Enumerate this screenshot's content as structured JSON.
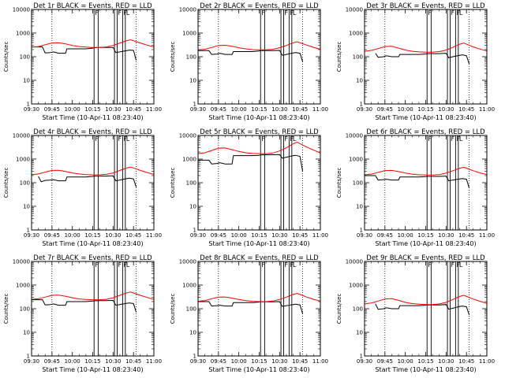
{
  "colors": {
    "events": "#000000",
    "lld": "#ff0000",
    "frame": "#000000"
  },
  "shared": {
    "xlabel": "Start Time (10-Apr-11 08:23:40)",
    "ylabel": "Counts/sec",
    "xlim": [
      "09:30",
      "11:00"
    ],
    "ylim": [
      1,
      10000
    ],
    "yscale": "log",
    "yticks": [
      "1",
      "10",
      "100",
      "1000",
      "10000"
    ],
    "xticks": [
      "09:30",
      "09:45",
      "10:00",
      "10:15",
      "10:30",
      "10:45",
      "11:00"
    ],
    "dotted_vlines": [
      "09:45",
      "10:47"
    ],
    "solid_vlines": [
      "10:16",
      "10:19",
      "10:31",
      "10:33",
      "10:37",
      "10:39"
    ],
    "flag_labels": {
      "10:16": "F",
      "10:33": "F",
      "10:37": "F",
      "10:39": "L"
    }
  },
  "chart_data": [
    {
      "type": "line",
      "title": "Det 1r BLACK = Events, RED = LLD",
      "series": [
        {
          "name": "Events",
          "x": [
            "09:30",
            "09:38",
            "09:40",
            "09:44",
            "09:46",
            "09:50",
            "09:55",
            "09:56",
            "10:00",
            "10:05",
            "10:10",
            "10:15",
            "10:16",
            "10:20",
            "10:25",
            "10:30",
            "10:32",
            "10:35",
            "10:40",
            "10:42",
            "10:45",
            "10:47"
          ],
          "values": [
            260,
            260,
            145,
            150,
            160,
            140,
            140,
            215,
            215,
            215,
            215,
            230,
            240,
            245,
            245,
            248,
            150,
            160,
            180,
            190,
            185,
            70
          ]
        },
        {
          "name": "LLD",
          "x": [
            "09:30",
            "09:35",
            "09:40",
            "09:45",
            "09:50",
            "09:55",
            "10:00",
            "10:05",
            "10:10",
            "10:15",
            "10:20",
            "10:25",
            "10:30",
            "10:35",
            "10:40",
            "10:43",
            "10:45",
            "10:50",
            "10:55",
            "11:00"
          ],
          "values": [
            260,
            270,
            320,
            380,
            390,
            350,
            300,
            270,
            255,
            245,
            245,
            260,
            300,
            380,
            480,
            520,
            470,
            380,
            310,
            260
          ]
        }
      ]
    },
    {
      "type": "line",
      "title": "Det 2r BLACK = Events, RED = LLD",
      "series": [
        {
          "name": "Events",
          "x": [
            "09:30",
            "09:38",
            "09:40",
            "09:44",
            "09:46",
            "09:50",
            "09:55",
            "09:56",
            "10:00",
            "10:05",
            "10:10",
            "10:15",
            "10:16",
            "10:20",
            "10:25",
            "10:30",
            "10:32",
            "10:35",
            "10:40",
            "10:42",
            "10:45",
            "10:47"
          ],
          "values": [
            180,
            180,
            125,
            130,
            140,
            125,
            125,
            165,
            165,
            165,
            165,
            175,
            180,
            180,
            180,
            185,
            115,
            125,
            145,
            150,
            140,
            60
          ]
        },
        {
          "name": "LLD",
          "x": [
            "09:30",
            "09:35",
            "09:40",
            "09:45",
            "09:50",
            "09:55",
            "10:00",
            "10:05",
            "10:10",
            "10:15",
            "10:20",
            "10:25",
            "10:30",
            "10:35",
            "10:40",
            "10:43",
            "10:45",
            "10:50",
            "10:55",
            "11:00"
          ],
          "values": [
            195,
            205,
            245,
            300,
            305,
            275,
            240,
            215,
            200,
            195,
            195,
            205,
            240,
            300,
            390,
            430,
            390,
            310,
            250,
            205
          ]
        }
      ]
    },
    {
      "type": "line",
      "title": "Det 3r BLACK = Events, RED = LLD",
      "series": [
        {
          "name": "Events",
          "x": [
            "09:38",
            "09:40",
            "09:44",
            "09:46",
            "09:50",
            "09:55",
            "09:56",
            "10:00",
            "10:05",
            "10:10",
            "10:15",
            "10:16",
            "10:20",
            "10:25",
            "10:30",
            "10:32",
            "10:35",
            "10:40",
            "10:42",
            "10:45",
            "10:47"
          ],
          "values": [
            140,
            95,
            100,
            110,
            100,
            100,
            125,
            125,
            125,
            125,
            130,
            135,
            135,
            135,
            140,
            90,
            100,
            115,
            120,
            110,
            50
          ]
        },
        {
          "name": "LLD",
          "x": [
            "09:30",
            "09:35",
            "09:40",
            "09:45",
            "09:50",
            "09:55",
            "10:00",
            "10:05",
            "10:10",
            "10:15",
            "10:20",
            "10:25",
            "10:30",
            "10:35",
            "10:40",
            "10:43",
            "10:45",
            "10:50",
            "10:55",
            "11:00"
          ],
          "values": [
            170,
            185,
            220,
            270,
            275,
            230,
            190,
            170,
            160,
            155,
            155,
            165,
            190,
            250,
            340,
            380,
            340,
            260,
            210,
            175
          ]
        }
      ]
    },
    {
      "type": "line",
      "title": "Det 4r BLACK = Events, RED = LLD",
      "series": [
        {
          "name": "Events",
          "x": [
            "09:35",
            "09:37",
            "09:40",
            "09:44",
            "09:46",
            "09:50",
            "09:55",
            "09:56",
            "10:00",
            "10:05",
            "10:10",
            "10:15",
            "10:16",
            "10:20",
            "10:25",
            "10:30",
            "10:32",
            "10:35",
            "10:40",
            "10:42",
            "10:45",
            "10:47"
          ],
          "values": [
            185,
            110,
            125,
            130,
            135,
            120,
            120,
            175,
            175,
            175,
            175,
            185,
            190,
            190,
            190,
            195,
            120,
            130,
            150,
            155,
            145,
            65
          ]
        },
        {
          "name": "LLD",
          "x": [
            "09:30",
            "09:35",
            "09:40",
            "09:45",
            "09:50",
            "09:55",
            "10:00",
            "10:05",
            "10:10",
            "10:15",
            "10:20",
            "10:25",
            "10:30",
            "10:35",
            "10:40",
            "10:43",
            "10:45",
            "10:50",
            "10:55",
            "11:00"
          ],
          "values": [
            220,
            235,
            280,
            330,
            335,
            300,
            260,
            235,
            220,
            215,
            215,
            225,
            260,
            330,
            420,
            460,
            420,
            330,
            270,
            225
          ]
        }
      ]
    },
    {
      "type": "line",
      "title": "Det 5r BLACK = Events, RED = LLD",
      "series": [
        {
          "name": "Events",
          "x": [
            "09:30",
            "09:38",
            "09:40",
            "09:44",
            "09:46",
            "09:50",
            "09:55",
            "09:56",
            "10:00",
            "10:05",
            "10:10",
            "10:15",
            "10:16",
            "10:20",
            "10:25",
            "10:30",
            "10:32",
            "10:35",
            "10:40",
            "10:42",
            "10:45",
            "10:47"
          ],
          "values": [
            900,
            900,
            620,
            650,
            700,
            620,
            620,
            1400,
            1400,
            1400,
            1400,
            1450,
            1500,
            1520,
            1520,
            1550,
            1100,
            1200,
            1400,
            1450,
            1300,
            300
          ]
        },
        {
          "name": "LLD",
          "x": [
            "09:30",
            "09:35",
            "09:40",
            "09:45",
            "09:50",
            "09:55",
            "10:00",
            "10:05",
            "10:10",
            "10:15",
            "10:20",
            "10:25",
            "10:30",
            "10:35",
            "10:40",
            "10:43",
            "10:45",
            "10:50",
            "10:55",
            "11:00"
          ],
          "values": [
            1700,
            1850,
            2300,
            2900,
            2950,
            2500,
            2100,
            1850,
            1750,
            1700,
            1700,
            1800,
            2200,
            3000,
            4500,
            5200,
            4500,
            3200,
            2400,
            1800
          ]
        }
      ]
    },
    {
      "type": "line",
      "title": "Det 6r BLACK = Events, RED = LLD",
      "series": [
        {
          "name": "Events",
          "x": [
            "09:30",
            "09:38",
            "09:40",
            "09:44",
            "09:46",
            "09:50",
            "09:55",
            "09:56",
            "10:00",
            "10:05",
            "10:10",
            "10:15",
            "10:16",
            "10:20",
            "10:25",
            "10:30",
            "10:32",
            "10:35",
            "10:40",
            "10:42",
            "10:45",
            "10:47"
          ],
          "values": [
            200,
            200,
            130,
            135,
            140,
            130,
            130,
            175,
            175,
            175,
            175,
            180,
            185,
            185,
            185,
            190,
            120,
            130,
            145,
            150,
            140,
            60
          ]
        },
        {
          "name": "LLD",
          "x": [
            "09:30",
            "09:35",
            "09:40",
            "09:45",
            "09:50",
            "09:55",
            "10:00",
            "10:05",
            "10:10",
            "10:15",
            "10:20",
            "10:25",
            "10:30",
            "10:35",
            "10:40",
            "10:43",
            "10:45",
            "10:50",
            "10:55",
            "11:00"
          ],
          "values": [
            215,
            230,
            275,
            325,
            330,
            295,
            255,
            230,
            215,
            210,
            210,
            220,
            255,
            320,
            410,
            450,
            410,
            320,
            260,
            220
          ]
        }
      ]
    },
    {
      "type": "line",
      "title": "Det 7r BLACK = Events, RED = LLD",
      "series": [
        {
          "name": "Events",
          "x": [
            "09:30",
            "09:38",
            "09:40",
            "09:44",
            "09:46",
            "09:50",
            "09:55",
            "09:56",
            "10:00",
            "10:05",
            "10:10",
            "10:15",
            "10:16",
            "10:20",
            "10:25",
            "10:30",
            "10:32",
            "10:35",
            "10:40",
            "10:42",
            "10:45",
            "10:47"
          ],
          "values": [
            240,
            240,
            145,
            150,
            160,
            140,
            140,
            200,
            200,
            200,
            200,
            210,
            215,
            220,
            220,
            225,
            140,
            150,
            170,
            175,
            165,
            70
          ]
        },
        {
          "name": "LLD",
          "x": [
            "09:30",
            "09:35",
            "09:40",
            "09:45",
            "09:50",
            "09:55",
            "10:00",
            "10:05",
            "10:10",
            "10:15",
            "10:20",
            "10:25",
            "10:30",
            "10:35",
            "10:40",
            "10:43",
            "10:45",
            "10:50",
            "10:55",
            "11:00"
          ],
          "values": [
            250,
            265,
            310,
            370,
            375,
            335,
            290,
            260,
            245,
            240,
            240,
            250,
            290,
            370,
            470,
            510,
            460,
            370,
            300,
            250
          ]
        }
      ]
    },
    {
      "type": "line",
      "title": "Det 8r BLACK = Events, RED = LLD",
      "series": [
        {
          "name": "Events",
          "x": [
            "09:30",
            "09:38",
            "09:40",
            "09:44",
            "09:46",
            "09:50",
            "09:55",
            "09:56",
            "10:00",
            "10:05",
            "10:10",
            "10:15",
            "10:16",
            "10:20",
            "10:25",
            "10:30",
            "10:32",
            "10:35",
            "10:40",
            "10:42",
            "10:45",
            "10:47"
          ],
          "values": [
            200,
            200,
            130,
            135,
            140,
            130,
            130,
            180,
            180,
            180,
            180,
            190,
            195,
            195,
            195,
            200,
            125,
            135,
            150,
            155,
            145,
            60
          ]
        },
        {
          "name": "LLD",
          "x": [
            "09:30",
            "09:35",
            "09:40",
            "09:45",
            "09:50",
            "09:55",
            "10:00",
            "10:05",
            "10:10",
            "10:15",
            "10:20",
            "10:25",
            "10:30",
            "10:35",
            "10:40",
            "10:43",
            "10:45",
            "10:50",
            "10:55",
            "11:00"
          ],
          "values": [
            205,
            220,
            265,
            310,
            315,
            280,
            245,
            220,
            205,
            200,
            200,
            210,
            245,
            310,
            400,
            440,
            400,
            310,
            250,
            210
          ]
        }
      ]
    },
    {
      "type": "line",
      "title": "Det 9r BLACK = Events, RED = LLD",
      "series": [
        {
          "name": "Events",
          "x": [
            "09:38",
            "09:40",
            "09:44",
            "09:46",
            "09:50",
            "09:55",
            "09:56",
            "10:00",
            "10:05",
            "10:10",
            "10:15",
            "10:16",
            "10:20",
            "10:25",
            "10:30",
            "10:32",
            "10:35",
            "10:40",
            "10:42",
            "10:45",
            "10:47"
          ],
          "values": [
            160,
            95,
            100,
            110,
            100,
            100,
            135,
            135,
            135,
            135,
            140,
            145,
            145,
            145,
            150,
            95,
            105,
            125,
            130,
            120,
            55
          ]
        },
        {
          "name": "LLD",
          "x": [
            "09:30",
            "09:35",
            "09:40",
            "09:45",
            "09:50",
            "09:55",
            "10:00",
            "10:05",
            "10:10",
            "10:15",
            "10:20",
            "10:25",
            "10:30",
            "10:35",
            "10:40",
            "10:43",
            "10:45",
            "10:50",
            "10:55",
            "11:00"
          ],
          "values": [
            160,
            175,
            210,
            260,
            265,
            225,
            185,
            165,
            155,
            150,
            150,
            160,
            185,
            245,
            330,
            370,
            330,
            255,
            205,
            170
          ]
        }
      ]
    }
  ]
}
